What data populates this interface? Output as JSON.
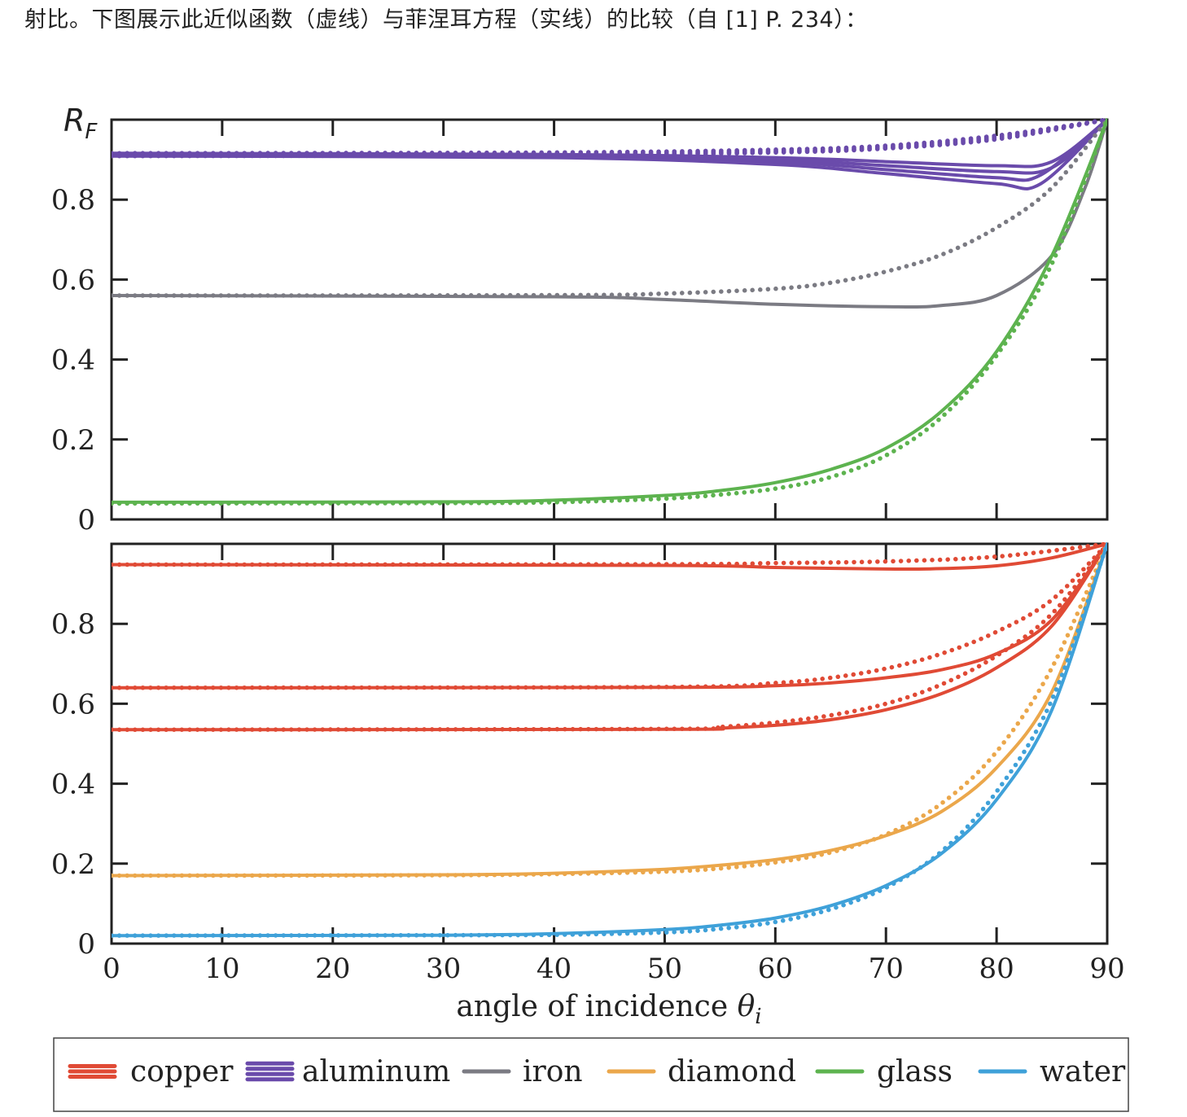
{
  "caption": "射比。下图展示此近似函数（虚线）与菲涅耳方程（实线）的比较（自 [1] P. 234）：",
  "colors": {
    "copper": "#e04a35",
    "aluminum": "#6a4bab",
    "iron": "#7b7b83",
    "diamond": "#eba74b",
    "glass": "#5db34f",
    "water": "#3fa1d9"
  },
  "chart_data": {
    "type": "line",
    "xlabel": "angle of incidence θi",
    "xlim": [
      0,
      90
    ],
    "x_ticks": [
      "0",
      "10",
      "20",
      "30",
      "40",
      "50",
      "60",
      "70",
      "80",
      "90"
    ],
    "solid_means": "Fresnel equations",
    "dotted_means": "Schlick approximation",
    "panels": [
      {
        "ylabel": "RF",
        "ylim": [
          0,
          1
        ],
        "y_ticks": [
          "0",
          "0.2",
          "0.4",
          "0.6",
          "0.8"
        ],
        "series": [
          {
            "name": "aluminum",
            "curves": [
              {
                "style": "solid",
                "x": [
                  0,
                  40,
                  60,
                  70,
                  80,
                  85,
                  90
                ],
                "y": [
                  0.916,
                  0.913,
                  0.905,
                  0.895,
                  0.885,
                  0.895,
                  1.0
                ]
              },
              {
                "style": "solid",
                "x": [
                  0,
                  40,
                  60,
                  70,
                  80,
                  85,
                  90
                ],
                "y": [
                  0.914,
                  0.911,
                  0.9,
                  0.885,
                  0.87,
                  0.88,
                  1.0
                ]
              },
              {
                "style": "solid",
                "x": [
                  0,
                  40,
                  60,
                  70,
                  80,
                  84,
                  90
                ],
                "y": [
                  0.912,
                  0.909,
                  0.895,
                  0.875,
                  0.855,
                  0.862,
                  1.0
                ]
              },
              {
                "style": "solid",
                "x": [
                  0,
                  40,
                  60,
                  70,
                  80,
                  84,
                  90
                ],
                "y": [
                  0.909,
                  0.905,
                  0.888,
                  0.865,
                  0.84,
                  0.84,
                  1.0
                ]
              },
              {
                "style": "dotted",
                "x": [
                  0,
                  40,
                  60,
                  70,
                  80,
                  90
                ],
                "y": [
                  0.916,
                  0.918,
                  0.925,
                  0.935,
                  0.96,
                  1.0
                ]
              },
              {
                "style": "dotted",
                "x": [
                  0,
                  40,
                  60,
                  70,
                  80,
                  90
                ],
                "y": [
                  0.914,
                  0.916,
                  0.922,
                  0.932,
                  0.957,
                  1.0
                ]
              },
              {
                "style": "dotted",
                "x": [
                  0,
                  40,
                  60,
                  70,
                  80,
                  90
                ],
                "y": [
                  0.911,
                  0.913,
                  0.92,
                  0.93,
                  0.954,
                  1.0
                ]
              },
              {
                "style": "dotted",
                "x": [
                  0,
                  40,
                  60,
                  70,
                  80,
                  90
                ],
                "y": [
                  0.909,
                  0.911,
                  0.918,
                  0.928,
                  0.951,
                  1.0
                ]
              }
            ]
          },
          {
            "name": "iron",
            "curves": [
              {
                "style": "solid",
                "x": [
                  0,
                  40,
                  50,
                  60,
                  70,
                  75,
                  80,
                  85,
                  88,
                  90
                ],
                "y": [
                  0.56,
                  0.557,
                  0.55,
                  0.538,
                  0.532,
                  0.535,
                  0.56,
                  0.66,
                  0.83,
                  1.0
                ]
              },
              {
                "style": "dotted",
                "x": [
                  0,
                  40,
                  50,
                  60,
                  65,
                  70,
                  75,
                  80,
                  85,
                  90
                ],
                "y": [
                  0.56,
                  0.561,
                  0.565,
                  0.577,
                  0.592,
                  0.62,
                  0.662,
                  0.73,
                  0.83,
                  1.0
                ]
              }
            ]
          },
          {
            "name": "glass",
            "curves": [
              {
                "style": "solid",
                "x": [
                  0,
                  30,
                  40,
                  50,
                  55,
                  60,
                  65,
                  70,
                  75,
                  80,
                  85,
                  90
                ],
                "y": [
                  0.043,
                  0.044,
                  0.048,
                  0.06,
                  0.072,
                  0.092,
                  0.125,
                  0.178,
                  0.27,
                  0.42,
                  0.66,
                  1.0
                ]
              },
              {
                "style": "dotted",
                "x": [
                  0,
                  30,
                  40,
                  50,
                  55,
                  60,
                  65,
                  70,
                  75,
                  80,
                  85,
                  90
                ],
                "y": [
                  0.04,
                  0.041,
                  0.043,
                  0.052,
                  0.062,
                  0.077,
                  0.106,
                  0.16,
                  0.255,
                  0.41,
                  0.64,
                  1.0
                ]
              }
            ]
          }
        ]
      },
      {
        "ylabel": "",
        "ylim": [
          0,
          1
        ],
        "y_ticks": [
          "0",
          "0.2",
          "0.4",
          "0.6",
          "0.8"
        ],
        "series": [
          {
            "name": "copper",
            "curves": [
              {
                "style": "solid",
                "x": [
                  0,
                  50,
                  60,
                  70,
                  75,
                  80,
                  85,
                  90
                ],
                "y": [
                  0.948,
                  0.946,
                  0.941,
                  0.937,
                  0.938,
                  0.945,
                  0.965,
                  1.0
                ]
              },
              {
                "style": "dotted",
                "x": [
                  0,
                  50,
                  60,
                  70,
                  80,
                  90
                ],
                "y": [
                  0.948,
                  0.949,
                  0.952,
                  0.956,
                  0.968,
                  1.0
                ]
              },
              {
                "style": "solid",
                "x": [
                  0,
                  50,
                  60,
                  65,
                  70,
                  75,
                  80,
                  85,
                  90
                ],
                "y": [
                  0.64,
                  0.641,
                  0.645,
                  0.652,
                  0.665,
                  0.685,
                  0.725,
                  0.81,
                  1.0
                ]
              },
              {
                "style": "dotted",
                "x": [
                  0,
                  50,
                  60,
                  65,
                  70,
                  75,
                  80,
                  85,
                  90
                ],
                "y": [
                  0.64,
                  0.642,
                  0.652,
                  0.665,
                  0.688,
                  0.725,
                  0.78,
                  0.86,
                  1.0
                ]
              },
              {
                "style": "solid",
                "x": [
                  0,
                  50,
                  55,
                  60,
                  65,
                  70,
                  75,
                  80,
                  85,
                  90
                ],
                "y": [
                  0.535,
                  0.536,
                  0.539,
                  0.546,
                  0.56,
                  0.585,
                  0.625,
                  0.69,
                  0.795,
                  1.0
                ]
              },
              {
                "style": "dotted",
                "x": [
                  0,
                  50,
                  55,
                  60,
                  65,
                  70,
                  75,
                  80,
                  85,
                  90
                ],
                "y": [
                  0.535,
                  0.537,
                  0.542,
                  0.553,
                  0.571,
                  0.6,
                  0.648,
                  0.72,
                  0.825,
                  1.0
                ]
              }
            ]
          },
          {
            "name": "diamond",
            "curves": [
              {
                "style": "solid",
                "x": [
                  0,
                  30,
                  40,
                  50,
                  55,
                  60,
                  65,
                  70,
                  75,
                  80,
                  85,
                  90
                ],
                "y": [
                  0.17,
                  0.172,
                  0.176,
                  0.186,
                  0.196,
                  0.21,
                  0.233,
                  0.27,
                  0.33,
                  0.44,
                  0.63,
                  1.0
                ]
              },
              {
                "style": "dotted",
                "x": [
                  0,
                  30,
                  40,
                  50,
                  55,
                  60,
                  65,
                  70,
                  75,
                  80,
                  85,
                  90
                ],
                "y": [
                  0.17,
                  0.171,
                  0.174,
                  0.18,
                  0.188,
                  0.203,
                  0.228,
                  0.273,
                  0.35,
                  0.48,
                  0.69,
                  1.0
                ]
              }
            ]
          },
          {
            "name": "water",
            "curves": [
              {
                "style": "solid",
                "x": [
                  0,
                  30,
                  40,
                  50,
                  55,
                  60,
                  65,
                  70,
                  75,
                  80,
                  85,
                  90
                ],
                "y": [
                  0.02,
                  0.021,
                  0.025,
                  0.035,
                  0.046,
                  0.064,
                  0.095,
                  0.145,
                  0.225,
                  0.36,
                  0.585,
                  1.0
                ]
              },
              {
                "style": "dotted",
                "x": [
                  0,
                  30,
                  40,
                  50,
                  55,
                  60,
                  65,
                  70,
                  75,
                  80,
                  85,
                  90
                ],
                "y": [
                  0.02,
                  0.021,
                  0.022,
                  0.028,
                  0.037,
                  0.054,
                  0.086,
                  0.14,
                  0.23,
                  0.38,
                  0.61,
                  1.0
                ]
              }
            ]
          }
        ]
      }
    ],
    "legend": {
      "placement": "bottom",
      "entries": [
        {
          "key": "copper",
          "label": "copper",
          "lines": 3
        },
        {
          "key": "aluminum",
          "label": "aluminum",
          "lines": 4
        },
        {
          "key": "iron",
          "label": "iron",
          "lines": 1
        },
        {
          "key": "diamond",
          "label": "diamond",
          "lines": 1
        },
        {
          "key": "glass",
          "label": "glass",
          "lines": 1
        },
        {
          "key": "water",
          "label": "water",
          "lines": 1
        }
      ]
    }
  }
}
